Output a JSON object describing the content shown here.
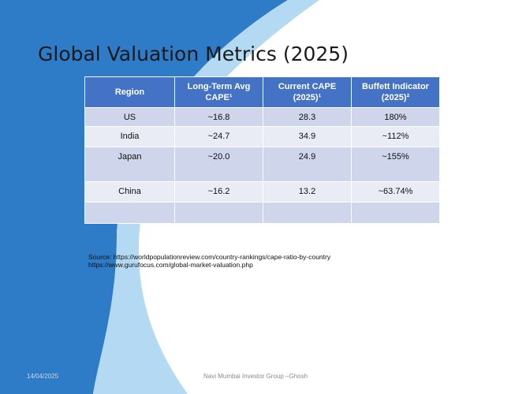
{
  "slide": {
    "title": "Global Valuation Metrics (2025)"
  },
  "table": {
    "headers": [
      "Region",
      "Long-Term Avg CAPE¹",
      "Current CAPE (2025)¹",
      "Buffett Indicator (2025)²"
    ],
    "rows": [
      [
        "US",
        "~16.8",
        "28.3",
        "180%"
      ],
      [
        "India",
        "~24.7",
        "34.9",
        "~112%"
      ],
      [
        "Japan",
        "~20.0",
        "24.9",
        "~155%"
      ],
      [
        "China",
        "~16.2",
        "13.2",
        "~63.74%"
      ],
      [
        "",
        "",
        "",
        ""
      ]
    ]
  },
  "source": {
    "line1": "Source: https://worldpopulationreview.com/country-rankings/cape-ratio-by-country",
    "line2": "https://www.gurufocus.com/global-market-valuation.php"
  },
  "footer": {
    "date": "14/04/2025",
    "text": "Navi Mumbai Investor Group –Ghosh"
  },
  "colors": {
    "header_fill": "#4472c4",
    "row_dark": "#cfd5ea",
    "row_light": "#e9ebf5",
    "background_blue": "#2e7bc8",
    "background_light_blue": "#a9d4f0"
  }
}
